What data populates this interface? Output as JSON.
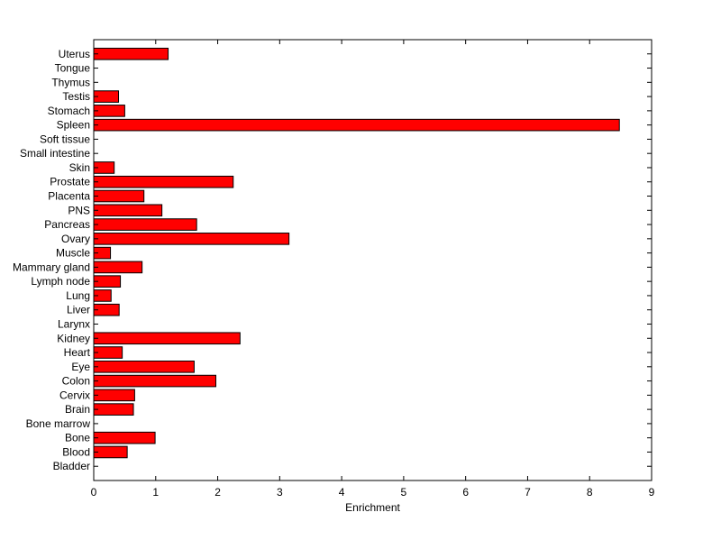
{
  "chart_data": {
    "type": "bar",
    "orientation": "horizontal",
    "title": "",
    "xlabel": "Enrichment",
    "ylabel": "",
    "xlim": [
      0,
      9
    ],
    "xticks": [
      0,
      1,
      2,
      3,
      4,
      5,
      6,
      7,
      8,
      9
    ],
    "grid": false,
    "legend": "none",
    "bar_color": "#ff0000",
    "edge_color": "#000000",
    "categories": [
      "Bladder",
      "Blood",
      "Bone",
      "Bone marrow",
      "Brain",
      "Cervix",
      "Colon",
      "Eye",
      "Heart",
      "Kidney",
      "Larynx",
      "Liver",
      "Lung",
      "Lymph node",
      "Mammary gland",
      "Muscle",
      "Ovary",
      "Pancreas",
      "PNS",
      "Placenta",
      "Prostate",
      "Skin",
      "Small intestine",
      "Soft tissue",
      "Spleen",
      "Stomach",
      "Testis",
      "Thymus",
      "Tongue",
      "Uterus"
    ],
    "values": [
      0,
      0.54,
      0.99,
      0,
      0.64,
      0.66,
      1.97,
      1.62,
      0.46,
      2.36,
      0,
      0.41,
      0.28,
      0.43,
      0.78,
      0.27,
      3.15,
      1.66,
      1.1,
      0.81,
      2.25,
      0.33,
      0,
      0,
      8.48,
      0.5,
      0.4,
      0,
      0,
      1.2
    ]
  }
}
